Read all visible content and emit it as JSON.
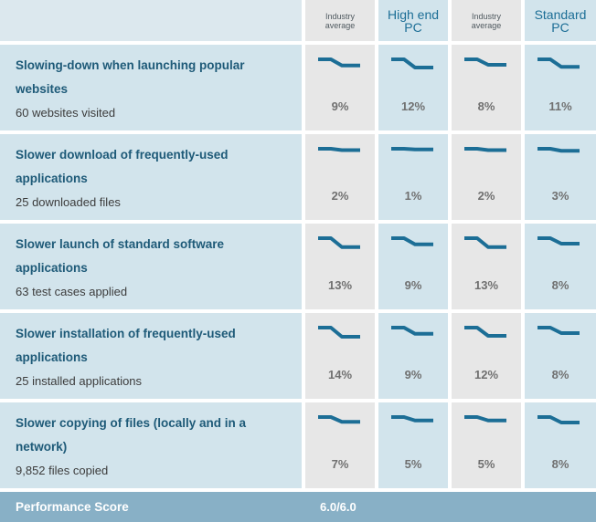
{
  "header": {
    "columns": [
      {
        "label_line1": "Industry",
        "label_line2": "average"
      },
      {
        "label_line1": "High end",
        "label_line2": "PC"
      },
      {
        "label_line1": "Industry",
        "label_line2": "average"
      },
      {
        "label_line1": "Standard",
        "label_line2": "PC"
      }
    ]
  },
  "rows": [
    {
      "title": "Slowing-down when launching popular websites",
      "subtitle": "60 websites visited",
      "values": [
        "9%",
        "12%",
        "8%",
        "11%"
      ],
      "levels": [
        0.09,
        0.12,
        0.08,
        0.11
      ]
    },
    {
      "title": "Slower download of frequently-used applications",
      "subtitle": "25 downloaded files",
      "values": [
        "2%",
        "1%",
        "2%",
        "3%"
      ],
      "levels": [
        0.02,
        0.01,
        0.02,
        0.03
      ]
    },
    {
      "title": "Slower launch of standard software applications",
      "subtitle": "63 test cases applied",
      "values": [
        "13%",
        "9%",
        "13%",
        "8%"
      ],
      "levels": [
        0.13,
        0.09,
        0.13,
        0.08
      ]
    },
    {
      "title": "Slower installation of frequently-used applications",
      "subtitle": "25 installed applications",
      "values": [
        "14%",
        "9%",
        "12%",
        "8%"
      ],
      "levels": [
        0.14,
        0.09,
        0.12,
        0.08
      ]
    },
    {
      "title": "Slower copying of files (locally and in a network)",
      "subtitle": "9,852 files copied",
      "values": [
        "7%",
        "5%",
        "5%",
        "8%"
      ],
      "levels": [
        0.07,
        0.05,
        0.05,
        0.08
      ]
    }
  ],
  "footer": {
    "label": "Performance Score",
    "score": "6.0/6.0"
  },
  "colors": {
    "sparkline": "#1c6e96",
    "header_accent": "#1c6e96",
    "footer_bg": "#88b0c6"
  }
}
